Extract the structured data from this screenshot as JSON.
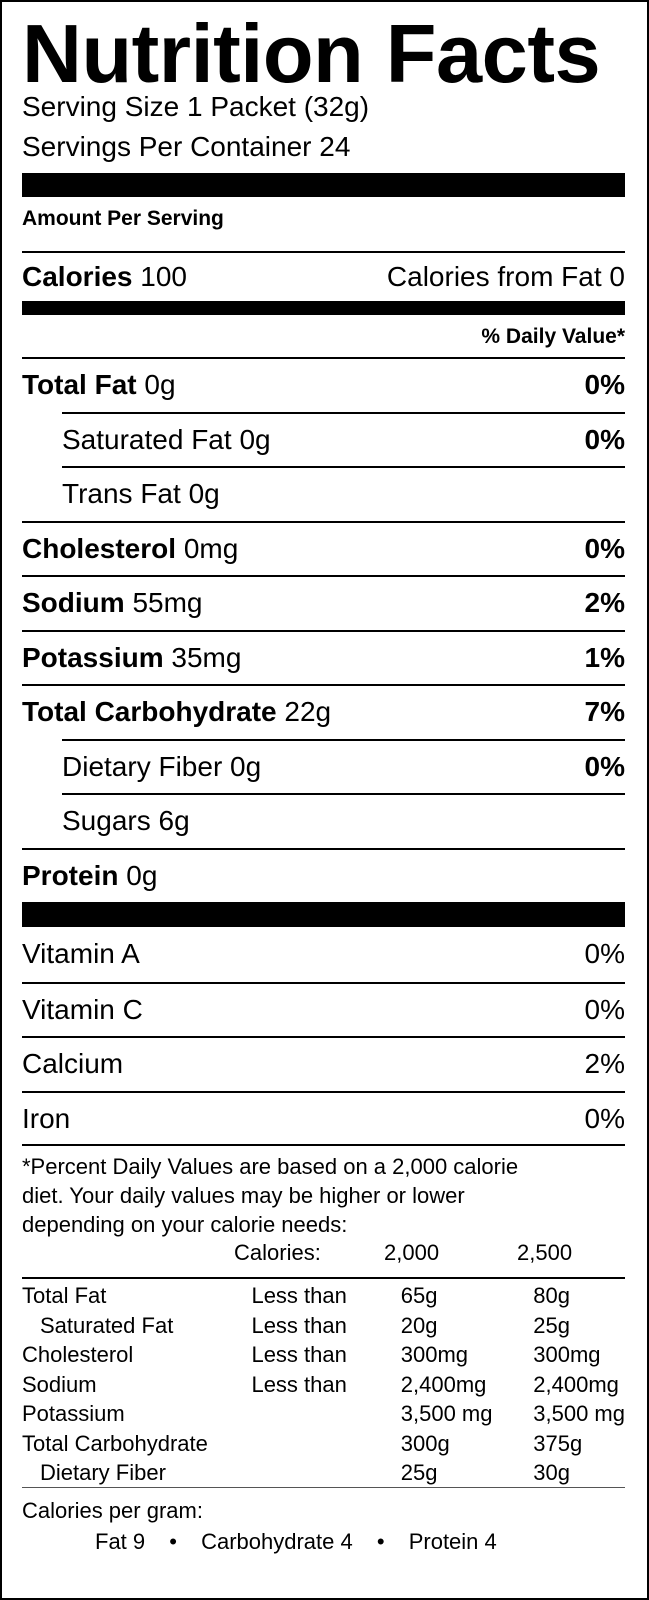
{
  "title": "Nutrition Facts",
  "serving_size": "Serving Size 1 Packet (32g)",
  "servings_per_container": "Servings Per Container 24",
  "amount_per_serving": "Amount Per Serving",
  "calories": {
    "label": "Calories",
    "value": "100",
    "from_fat": "Calories from Fat 0"
  },
  "daily_value_header": "% Daily Value*",
  "nutrients": [
    {
      "label": "Total Fat",
      "amount": "0g",
      "dv": "0%"
    },
    {
      "label": "Saturated Fat",
      "amount": "0g",
      "dv": "0%"
    },
    {
      "label": "Trans Fat",
      "amount": "0g",
      "dv": ""
    },
    {
      "label": "Cholesterol",
      "amount": "0mg",
      "dv": "0%"
    },
    {
      "label": "Sodium",
      "amount": "55mg",
      "dv": "2%"
    },
    {
      "label": "Potassium",
      "amount": "35mg",
      "dv": "1%"
    },
    {
      "label": "Total Carbohydrate",
      "amount": "22g",
      "dv": "7%"
    },
    {
      "label": "Dietary Fiber",
      "amount": "0g",
      "dv": "0%"
    },
    {
      "label": "Sugars",
      "amount": "6g",
      "dv": ""
    },
    {
      "label": "Protein",
      "amount": "0g",
      "dv": ""
    }
  ],
  "vitamins": [
    {
      "label": "Vitamin A",
      "dv": "0%"
    },
    {
      "label": "Vitamin C",
      "dv": "0%"
    },
    {
      "label": "Calcium",
      "dv": "2%"
    },
    {
      "label": "Iron",
      "dv": "0%"
    }
  ],
  "footnote": [
    "*Percent Daily Values are based on a 2,000 calorie",
    "diet. Your daily values may be higher or lower",
    "depending on your calorie needs:"
  ],
  "reference_table": {
    "header": [
      "",
      "Calories:",
      "2,000",
      "2,500"
    ],
    "rows": [
      [
        "Total Fat",
        "Less than",
        "65g",
        "80g"
      ],
      [
        "Saturated Fat",
        "Less than",
        "20g",
        "25g"
      ],
      [
        "Cholesterol",
        "Less than",
        "300mg",
        "300mg"
      ],
      [
        "Sodium",
        "Less than",
        "2,400mg",
        "2,400mg"
      ],
      [
        "Potassium",
        "",
        "3,500 mg",
        "3,500 mg"
      ],
      [
        "Total Carbohydrate",
        "",
        "300g",
        "375g"
      ],
      [
        "Dietary Fiber",
        "",
        "25g",
        "30g"
      ]
    ]
  },
  "calories_per_gram": {
    "label": "Calories per gram:",
    "fat": "Fat 9",
    "carbohydrate": "Carbohydrate 4",
    "protein": "Protein 4",
    "separator": "•"
  }
}
